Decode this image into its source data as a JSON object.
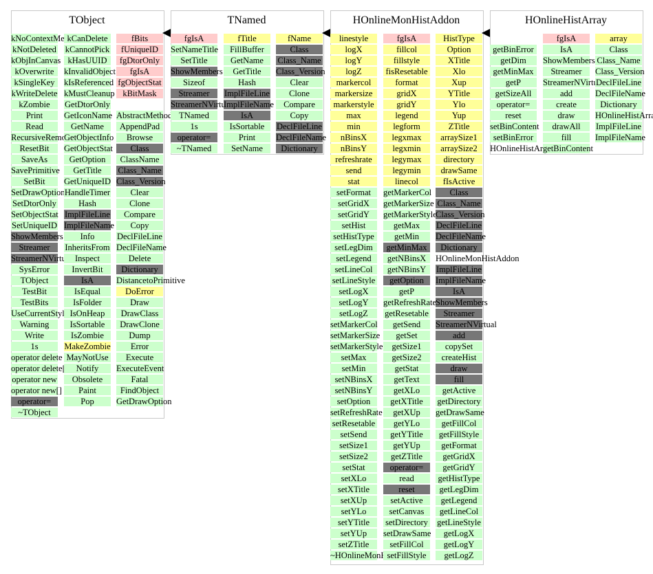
{
  "classes": [
    {
      "name": "TObject",
      "columns": [
        [
          "kNoContextMenu",
          "kNotDeleted",
          "kObjInCanvas",
          "kOverwrite",
          "kSingleKey",
          "kWriteDelete",
          "kZombie",
          "Print",
          "Read",
          "RecursiveRemove",
          "ResetBit",
          "SaveAs",
          "SavePrimitive",
          "SetBit",
          "SetDrawOption",
          "SetDtorOnly",
          "SetObjectStat",
          "SetUniqueID",
          "ShowMembers",
          "Streamer",
          "StreamerNVirtual",
          "SysError",
          "TObject",
          "TestBit",
          "TestBits",
          "UseCurrentStyle",
          "Warning",
          "Write",
          "1s",
          "operator delete",
          "operator delete[]",
          "operator new",
          "operator new[]",
          "operator=",
          "~TObject"
        ],
        [
          "kCanDelete",
          "kCannotPick",
          "kHasUUID",
          "kInvalidObject",
          "kIsReferenced",
          "kMustCleanup",
          "GetDtorOnly",
          "GetIconName",
          "GetName",
          "GetObjectInfo",
          "GetObjectStat",
          "GetOption",
          "GetTitle",
          "GetUniqueID",
          "HandleTimer",
          "Hash",
          "ImplFileLine",
          "ImplFileName",
          "Info",
          "InheritsFrom",
          "Inspect",
          "InvertBit",
          "IsA",
          "IsEqual",
          "IsFolder",
          "IsOnHeap",
          "IsSortable",
          "IsZombie",
          "MakeZombie",
          "MayNotUse",
          "Notify",
          "Obsolete",
          "Paint",
          "Pop"
        ],
        [
          "fBits",
          "fUniqueID",
          "fgDtorOnly",
          "fgIsA",
          "fgObjectStat",
          "kBitMask",
          "",
          "AbstractMethod",
          "AppendPad",
          "Browse",
          "Class",
          "ClassName",
          "Class_Name",
          "Class_Version",
          "Clear",
          "Clone",
          "Compare",
          "Copy",
          "DeclFileLine",
          "DeclFileName",
          "Delete",
          "Dictionary",
          "DistancetoPrimitive",
          "DoError",
          "Draw",
          "DrawClass",
          "DrawClone",
          "Dump",
          "Error",
          "Execute",
          "ExecuteEvent",
          "Fatal",
          "FindObject",
          "GetDrawOption"
        ]
      ]
    },
    {
      "name": "TNamed",
      "columns": [
        [
          "fgIsA",
          "SetNameTitle",
          "SetTitle",
          "ShowMembers",
          "Sizeof",
          "Streamer",
          "StreamerNVirtual",
          "TNamed",
          "1s",
          "operator=",
          "~TNamed"
        ],
        [
          "fTitle",
          "FillBuffer",
          "GetName",
          "GetTitle",
          "Hash",
          "ImplFileLine",
          "ImplFileName",
          "IsA",
          "IsSortable",
          "Print",
          "SetName"
        ],
        [
          "fName",
          "Class",
          "Class_Name",
          "Class_Version",
          "Clear",
          "Clone",
          "Compare",
          "Copy",
          "DeclFileLine",
          "DeclFileName",
          "Dictionary"
        ]
      ]
    },
    {
      "name": "HOnlineMonHistAddon",
      "columns": [
        [
          "linestyle",
          "logX",
          "logY",
          "logZ",
          "markercol",
          "markersize",
          "markerstyle",
          "max",
          "min",
          "nBinsX",
          "nBinsY",
          "refreshrate",
          "send",
          "stat",
          "setFormat",
          "setGridX",
          "setGridY",
          "setHist",
          "setHistType",
          "setLegDim",
          "setLegend",
          "setLineCol",
          "setLineStyle",
          "setLogX",
          "setLogY",
          "setLogZ",
          "setMarkerCol",
          "setMarkerSize",
          "setMarkerStyle",
          "setMax",
          "setMin",
          "setNBinsX",
          "setNBinsY",
          "setOption",
          "setRefreshRate",
          "setResetable",
          "setSend",
          "setSize1",
          "setSize2",
          "setStat",
          "setXLo",
          "setXTitle",
          "setXUp",
          "setYLo",
          "setYTitle",
          "setYUp",
          "setZTitle",
          "~HOnlineMonHistAddon"
        ],
        [
          "fgIsA",
          "fillcol",
          "fillstyle",
          "fisResetable",
          "format",
          "gridX",
          "gridY",
          "legend",
          "legform",
          "legxmax",
          "legxmin",
          "legymax",
          "legymin",
          "linecol",
          "getMarkerCol",
          "getMarkerSize",
          "getMarkerStyle",
          "getMax",
          "getMin",
          "getMinMax",
          "getNBinsX",
          "getNBinsY",
          "getOption",
          "getP",
          "getRefreshRate",
          "getResetable",
          "getSend",
          "getSet",
          "getSize1",
          "getSize2",
          "getStat",
          "getText",
          "getXLo",
          "getXTitle",
          "getXUp",
          "getYLo",
          "getYTitle",
          "getYUp",
          "getZTitle",
          "operator=",
          "read",
          "reset",
          "setActive",
          "setCanvas",
          "setDirectory",
          "setDrawSame",
          "setFillCol",
          "setFillStyle"
        ],
        [
          "HistType",
          "Option",
          "XTitle",
          "Xlo",
          "Xup",
          "YTitle",
          "Ylo",
          "Yup",
          "ZTitle",
          "arraySize1",
          "arraySize2",
          "directory",
          "drawSame",
          "fIsActive",
          "Class",
          "Class_Name",
          "Class_Version",
          "DeclFileLine",
          "DeclFileName",
          "Dictionary",
          "HOnlineMonHistAddon",
          "ImplFileLine",
          "ImplFileName",
          "IsA",
          "ShowMembers",
          "Streamer",
          "StreamerNVirtual",
          "add",
          "copySet",
          "createHist",
          "draw",
          "fill",
          "getActive",
          "getDirectory",
          "getDrawSame",
          "getFillCol",
          "getFillStyle",
          "getFormat",
          "getGridX",
          "getGridY",
          "getHistType",
          "getLegDim",
          "getLegend",
          "getLineCol",
          "getLineStyle",
          "getLogX",
          "getLogY",
          "getLogZ"
        ]
      ]
    },
    {
      "name": "HOnlineHistArray",
      "columns": [
        [
          "",
          "getBinError",
          "getDim",
          "getMinMax",
          "getP",
          "getSizeAll",
          "operator=",
          "reset",
          "setBinContent",
          "setBinError",
          "HOnlineHistArray"
        ],
        [
          "fgIsA",
          "IsA",
          "ShowMembers",
          "Streamer",
          "StreamerNVirtual",
          "add",
          "create",
          "draw",
          "drawAll",
          "fill",
          "getBinContent"
        ],
        [
          "array",
          "Class",
          "Class_Name",
          "Class_Version",
          "DeclFileLine",
          "DeclFileName",
          "Dictionary",
          "HOnlineHistArray",
          "ImplFileLine",
          "ImplFileName",
          ""
        ]
      ]
    }
  ],
  "colors": {
    "member_data": "#ffcccc",
    "public_method": "#ccffcc",
    "protected": "#ffff99",
    "inherited": "#777777"
  }
}
